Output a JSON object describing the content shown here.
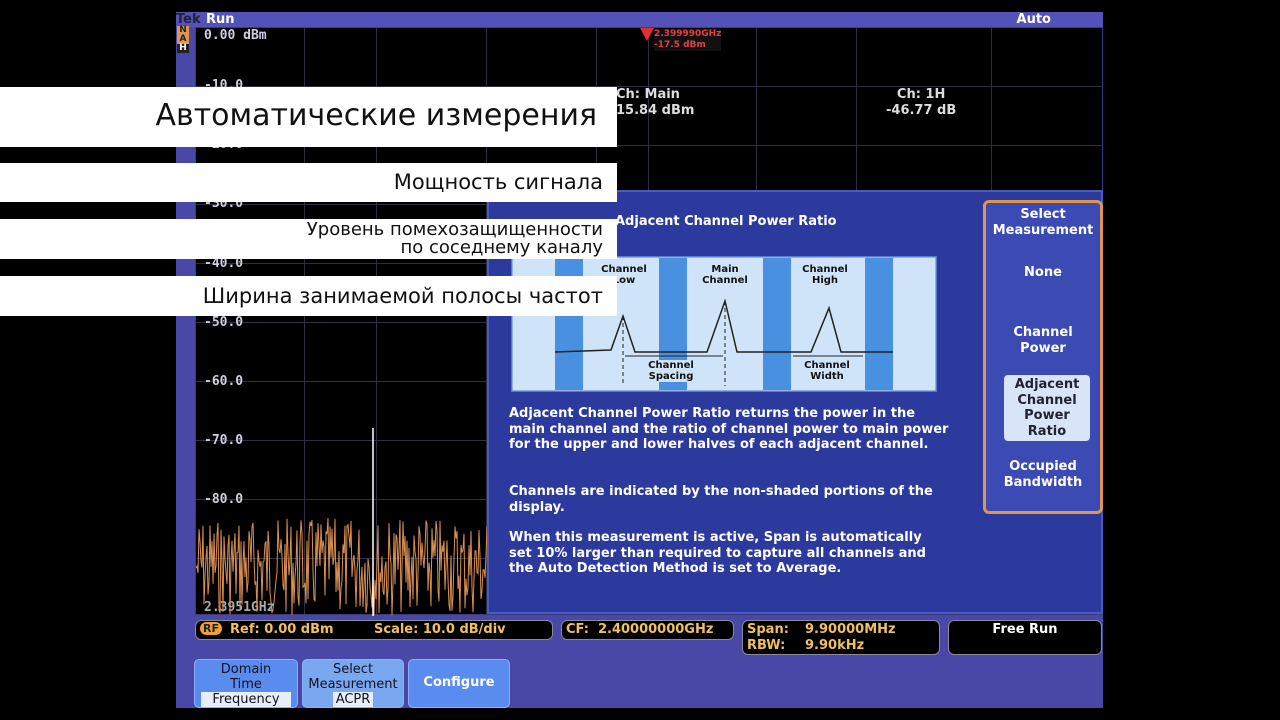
{
  "topbar": {
    "brand": "Tek",
    "state": "Run",
    "mode": "Auto"
  },
  "plot": {
    "ref_label": "0.00 dBm",
    "y_ticks": [
      "-10.0",
      "-20.0",
      "-30.0",
      "-40.0",
      "-50.0",
      "-60.0",
      "-70.0",
      "-80.0"
    ],
    "start_freq": "2.3951GHz",
    "marker": {
      "id": "R",
      "freq": "2.399990GHz",
      "level": "-17.5 dBm"
    },
    "readouts": [
      {
        "label": "Ch: Main",
        "value": "15.84 dBm"
      },
      {
        "label": "Ch: 1H",
        "value": "-46.77 dB"
      }
    ],
    "trace_indicators": [
      "N",
      "A",
      "H"
    ]
  },
  "help": {
    "title": "Adjacent Channel Power Ratio",
    "diagram": {
      "channel_low": "Channel Low",
      "main_channel": "Main Channel",
      "channel_high": "Channel High",
      "channel_spacing": "Channel Spacing",
      "channel_width": "Channel Width"
    },
    "paragraphs": [
      "Adjacent Channel Power Ratio returns the power in the main channel and the ratio of channel power to main power for the upper and lower halves of each adjacent channel.",
      "Channels are indicated by the non-shaded portions of the display.",
      "When this measurement is active, Span is automatically set 10% larger than required to capture all channels and the Auto Detection Method is set to Average."
    ]
  },
  "menu": {
    "title": "Select Measurement",
    "items": [
      "None",
      "Channel Power",
      "Adjacent Channel Power Ratio",
      "Occupied Bandwidth"
    ],
    "selected": "Adjacent Channel Power Ratio"
  },
  "status": {
    "rf": "RF",
    "ref": "Ref: 0.00 dBm",
    "scale": "Scale: 10.0 dB/div",
    "cf": "CF:  2.40000000GHz",
    "span_label": "Span:",
    "span": "9.90000MHz",
    "rbw_label": "RBW:",
    "rbw": "9.90kHz",
    "trigger": "Free Run"
  },
  "buttons": [
    {
      "line1": "Domain",
      "line2": "Time",
      "line3": "Frequency"
    },
    {
      "line1": "Select",
      "line2": "Measurement",
      "line3": "ACPR"
    },
    {
      "line1": "Configure"
    }
  ],
  "overlay": {
    "title": "Автоматические измерения",
    "items": [
      "Мощность сигнала",
      "Уровень помехозащищенности",
      "по соседнему каналу",
      "Ширина занимаемой полосы частот"
    ]
  },
  "colors": {
    "accent": "#e0954a",
    "panel": "#2c3a9e",
    "marker": "#e03030"
  }
}
